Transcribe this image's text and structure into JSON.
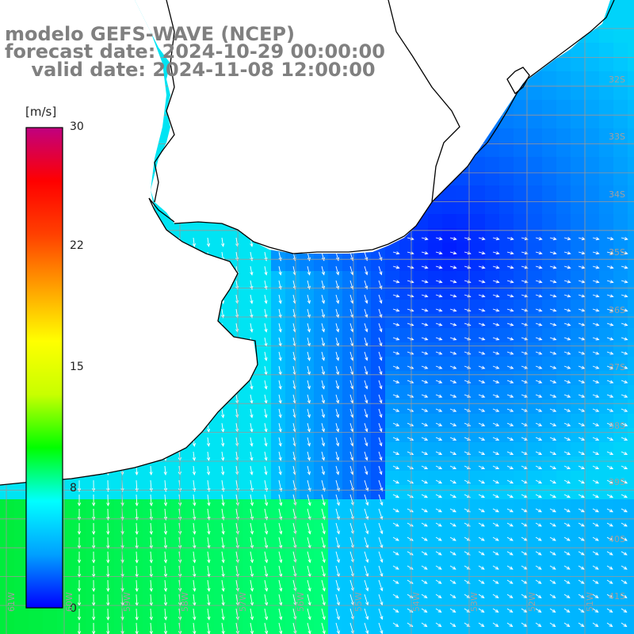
{
  "title": {
    "line1": "modelo GEFS-WAVE (NCEP)",
    "line2": "forecast date: 2024-10-29 00:00:00",
    "line3": "    valid date: 2024-11-08 12:00:00"
  },
  "colorbar": {
    "unit": "[m/s]",
    "ticks": [
      "30",
      "22",
      "15",
      "8",
      "0"
    ],
    "min": 0,
    "max": 30,
    "colors": [
      "#0000ff",
      "#00a0ff",
      "#00ffff",
      "#00ff00",
      "#c8ff00",
      "#ffff00",
      "#ffa000",
      "#ff4000",
      "#ff0000",
      "#c00080"
    ]
  },
  "latitude_labels": [
    "32S",
    "33S",
    "34S",
    "35S",
    "36S",
    "37S",
    "38S",
    "39S",
    "40S",
    "41S"
  ],
  "longitude_labels": [
    "61W",
    "60W",
    "59W",
    "58W",
    "57W",
    "56W",
    "55W",
    "54W",
    "53W",
    "52W",
    "51W"
  ],
  "colors": {
    "land": "#ffffff",
    "coast": "#000000",
    "grid": "#999999",
    "arrow": "#ffffff",
    "title": "#808080"
  }
}
